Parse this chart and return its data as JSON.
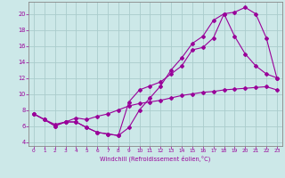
{
  "xlabel": "Windchill (Refroidissement éolien,°C)",
  "background_color": "#cce8e8",
  "grid_color": "#aacccc",
  "line_color": "#990099",
  "xlim": [
    -0.5,
    23.5
  ],
  "ylim": [
    3.5,
    21.5
  ],
  "xticks": [
    0,
    1,
    2,
    3,
    4,
    5,
    6,
    7,
    8,
    9,
    10,
    11,
    12,
    13,
    14,
    15,
    16,
    17,
    18,
    19,
    20,
    21,
    22,
    23
  ],
  "yticks": [
    4,
    6,
    8,
    10,
    12,
    14,
    16,
    18,
    20
  ],
  "line1_x": [
    0,
    1,
    2,
    3,
    4,
    5,
    6,
    7,
    8,
    9,
    10,
    11,
    12,
    13,
    14,
    15,
    16,
    17,
    18,
    19,
    20,
    21,
    22,
    23
  ],
  "line1_y": [
    7.5,
    6.8,
    6.0,
    6.5,
    6.5,
    5.8,
    5.2,
    5.0,
    4.8,
    5.8,
    8.0,
    9.5,
    11.0,
    13.0,
    14.5,
    16.3,
    17.2,
    19.2,
    20.0,
    20.2,
    20.8,
    20.0,
    17.0,
    12.0
  ],
  "line2_x": [
    0,
    1,
    2,
    3,
    4,
    5,
    6,
    7,
    8,
    9,
    10,
    11,
    12,
    13,
    14,
    15,
    16,
    17,
    18,
    19,
    20,
    21,
    22,
    23
  ],
  "line2_y": [
    7.5,
    6.8,
    6.0,
    6.5,
    6.5,
    5.8,
    5.2,
    5.0,
    4.8,
    9.0,
    10.5,
    11.0,
    11.5,
    12.5,
    13.5,
    15.5,
    15.8,
    17.0,
    20.0,
    17.2,
    15.0,
    13.5,
    12.5,
    12.0
  ],
  "line3_x": [
    0,
    1,
    2,
    3,
    4,
    5,
    6,
    7,
    8,
    9,
    10,
    11,
    12,
    13,
    14,
    15,
    16,
    17,
    18,
    19,
    20,
    21,
    22,
    23
  ],
  "line3_y": [
    7.5,
    6.8,
    6.2,
    6.5,
    7.0,
    6.8,
    7.2,
    7.5,
    8.0,
    8.5,
    8.8,
    9.0,
    9.2,
    9.5,
    9.8,
    10.0,
    10.2,
    10.3,
    10.5,
    10.6,
    10.7,
    10.8,
    10.9,
    10.5
  ]
}
